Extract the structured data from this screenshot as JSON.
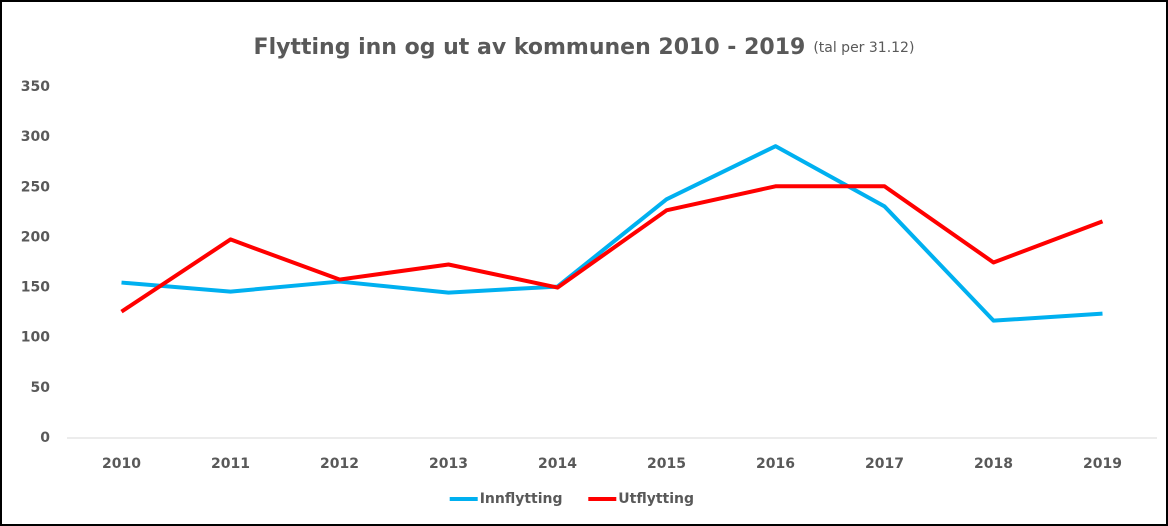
{
  "chart_data": {
    "type": "line",
    "title": "Flytting inn og ut av kommunen 2010 - 2019",
    "subtitle": "(tal per 31.12)",
    "categories": [
      "2010",
      "2011",
      "2012",
      "2013",
      "2014",
      "2015",
      "2016",
      "2017",
      "2018",
      "2019"
    ],
    "series": [
      {
        "name": "Innflytting",
        "color": "#00b0f0",
        "values": [
          155,
          146,
          156,
          145,
          151,
          238,
          291,
          231,
          117,
          124
        ]
      },
      {
        "name": "Utflytting",
        "color": "#ff0000",
        "values": [
          126,
          198,
          158,
          173,
          150,
          227,
          251,
          251,
          175,
          216
        ]
      }
    ],
    "ylim": [
      0,
      350
    ],
    "yticks": [
      0,
      50,
      100,
      150,
      200,
      250,
      300,
      350
    ],
    "grid": false,
    "legend": "bottom"
  }
}
